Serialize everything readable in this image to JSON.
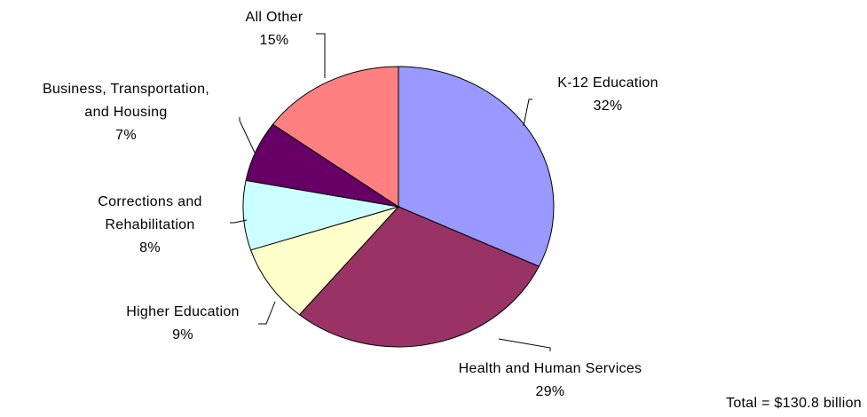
{
  "chart_data": {
    "type": "pie",
    "start_angle_deg": 0,
    "direction": "clockwise",
    "slices": [
      {
        "name": "K-12 Education",
        "label_lines": [
          "K-12 Education"
        ],
        "value": 32,
        "value_label": "32%",
        "color": "#9999FF"
      },
      {
        "name": "Health and Human Services",
        "label_lines": [
          "Health and Human Services"
        ],
        "value": 29,
        "value_label": "29%",
        "color": "#993366"
      },
      {
        "name": "Higher Education",
        "label_lines": [
          "Higher Education"
        ],
        "value": 9,
        "value_label": "9%",
        "color": "#FFFFCC"
      },
      {
        "name": "Corrections and Rehabilitation",
        "label_lines": [
          "Corrections and",
          "Rehabilitation"
        ],
        "value": 8,
        "value_label": "8%",
        "color": "#CCFFFF"
      },
      {
        "name": "Business, Transportation, and Housing",
        "label_lines": [
          "Business, Transportation,",
          "and Housing"
        ],
        "value": 7,
        "value_label": "7%",
        "color": "#660066"
      },
      {
        "name": "All Other",
        "label_lines": [
          "All Other"
        ],
        "value": 15,
        "value_label": "15%",
        "color": "#FF8080"
      }
    ],
    "footnote": "Total = $130.8 billion"
  }
}
